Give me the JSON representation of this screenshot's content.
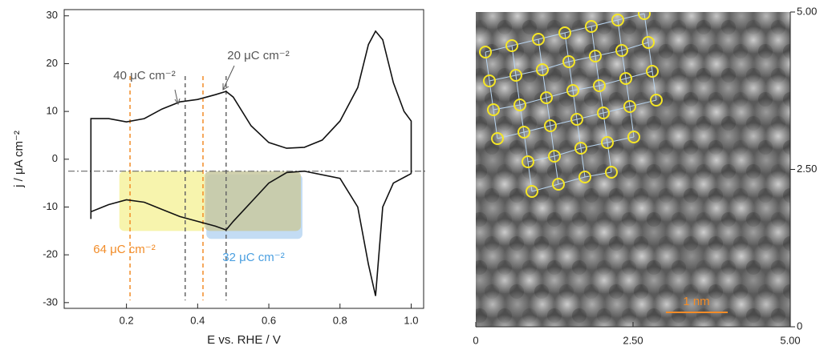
{
  "chart_data": [
    {
      "type": "line",
      "x_label": "E vs. RHE / V",
      "y_label": "j / μA cm⁻²",
      "xlim": [
        0.025,
        1.035
      ],
      "ylim": [
        -31.2,
        31.3
      ],
      "xticks": [
        0.2,
        0.4,
        0.6,
        0.8,
        {
          "value": 1,
          "label": "1.0"
        }
      ],
      "yticks": [
        -30,
        -20,
        -10,
        0,
        10,
        20,
        30
      ],
      "series": [
        {
          "color": "#111111",
          "x": [
            0.1,
            0.1,
            0.15,
            0.2,
            0.25,
            0.3,
            0.35,
            0.4,
            0.45,
            0.48,
            0.5,
            0.55,
            0.6,
            0.65,
            0.7,
            0.75,
            0.8,
            0.85,
            0.88,
            0.9,
            0.92,
            0.95,
            0.98,
            1.0,
            1.0
          ],
          "values": [
            -11,
            8.5,
            8.5,
            7.8,
            8.5,
            10.5,
            12,
            12.5,
            13.5,
            14.2,
            13,
            7,
            3.5,
            2.3,
            2.5,
            4,
            8,
            15,
            24,
            26.8,
            25,
            16,
            10,
            8,
            -3
          ]
        },
        {
          "color": "#111111",
          "x": [
            1.0,
            0.95,
            0.92,
            0.9,
            0.88,
            0.85,
            0.8,
            0.7,
            0.65,
            0.6,
            0.55,
            0.5,
            0.48,
            0.45,
            0.4,
            0.35,
            0.3,
            0.25,
            0.2,
            0.15,
            0.1,
            0.1
          ],
          "values": [
            -3,
            -5,
            -10,
            -28.6,
            -22,
            -10,
            -4,
            -2.5,
            -2.8,
            -5,
            -9,
            -13,
            -14.8,
            -14,
            -13,
            -12,
            -10.5,
            -9,
            -8.5,
            -9.5,
            -11,
            -12.5
          ]
        }
      ],
      "reference_lines": [
        {
          "x": 0.21,
          "color": "#f28c28"
        },
        {
          "x": 0.415,
          "color": "#f28c28"
        },
        {
          "x": 0.365,
          "color": "#666666"
        },
        {
          "x": 0.48,
          "color": "#666666"
        },
        {
          "y": -2.5,
          "color": "#555555"
        }
      ],
      "shaded_regions": [
        {
          "x": [
            0.18,
            0.42
          ],
          "y": [
            -15,
            -2.5
          ],
          "color": "#f4f08a"
        },
        {
          "x": [
            0.42,
            0.69
          ],
          "y": [
            -16,
            -2.5
          ],
          "color": "#a9cdf0"
        },
        {
          "x": [
            0.42,
            0.69
          ],
          "y": [
            -15,
            -2.5
          ],
          "color": "#c9c9a0"
        }
      ],
      "annotations": [
        {
          "text": "40 μC cm⁻²",
          "color": "#555555"
        },
        {
          "text": "20 μC cm⁻²",
          "color": "#555555"
        },
        {
          "text": "64 μC cm⁻²",
          "color": "#f28c28"
        },
        {
          "text": "32 μC cm⁻²",
          "color": "#4a9fe0"
        }
      ]
    },
    {
      "type": "image",
      "xlim": [
        0,
        5
      ],
      "ylim": [
        0,
        5
      ],
      "xticks": [
        0,
        {
          "value": 2.5,
          "label": "2.50"
        },
        {
          "value": 5,
          "label": "5.00"
        }
      ],
      "yticks": [
        0,
        {
          "value": 2.5,
          "label": "2.50"
        },
        {
          "value": 5,
          "label": "5.00"
        }
      ],
      "scale_bar": "1 nm",
      "scale_bar_color": "#f28c28"
    }
  ]
}
